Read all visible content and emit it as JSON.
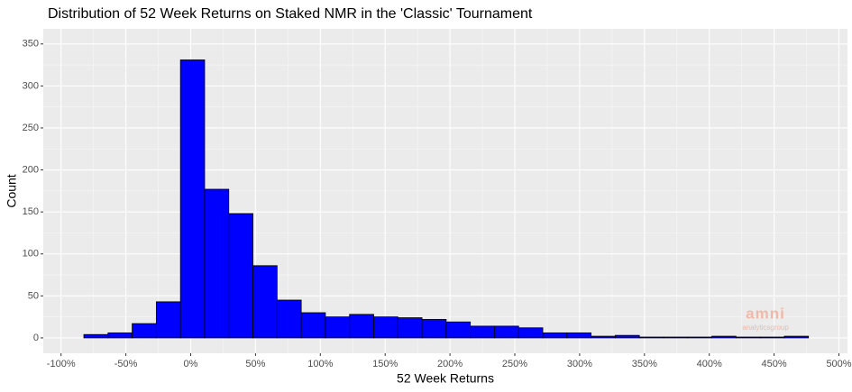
{
  "chart_data": {
    "type": "histogram",
    "title": "Distribution of 52 Week Returns on Staked NMR in the 'Classic' Tournament",
    "x_label": "52 Week Returns",
    "y_label": "Count",
    "bins": [
      -82.4,
      -63.77,
      -45.14,
      -26.51,
      -7.88,
      10.75,
      29.38,
      48.01,
      66.64,
      85.27,
      103.9,
      122.53,
      141.16,
      159.79,
      178.42,
      197.05,
      215.68,
      234.31,
      252.94,
      271.57,
      290.2,
      308.83,
      327.46,
      346.09,
      364.72,
      383.35,
      401.98,
      420.61,
      439.24,
      457.87,
      476.5
    ],
    "values": [
      4,
      6,
      17,
      43,
      331,
      177,
      148,
      86,
      45,
      30,
      25,
      28,
      25,
      24,
      22,
      19,
      14,
      14,
      12,
      6,
      6,
      2,
      3,
      1,
      1,
      1,
      2,
      1,
      1,
      2
    ],
    "color": "#0000ff",
    "edge_color": "#000000",
    "xlim": [
      -113.7,
      506.6
    ],
    "ylim": [
      -18.3,
      368
    ],
    "xticks": [
      {
        "value": -100,
        "label": "-100%"
      },
      {
        "value": -50,
        "label": "-50%"
      },
      {
        "value": 0,
        "label": "0%"
      },
      {
        "value": 50,
        "label": "50%"
      },
      {
        "value": 100,
        "label": "100%"
      },
      {
        "value": 150,
        "label": "150%"
      },
      {
        "value": 200,
        "label": "200%"
      },
      {
        "value": 250,
        "label": "250%"
      },
      {
        "value": 300,
        "label": "300%"
      },
      {
        "value": 350,
        "label": "350%"
      },
      {
        "value": 400,
        "label": "400%"
      },
      {
        "value": 450,
        "label": "450%"
      },
      {
        "value": 500,
        "label": "500%"
      }
    ],
    "yticks": [
      0,
      50,
      100,
      150,
      200,
      250,
      300,
      350
    ],
    "grid": true,
    "watermark": {
      "logo": "amni",
      "text": "analyticsgroup"
    }
  }
}
